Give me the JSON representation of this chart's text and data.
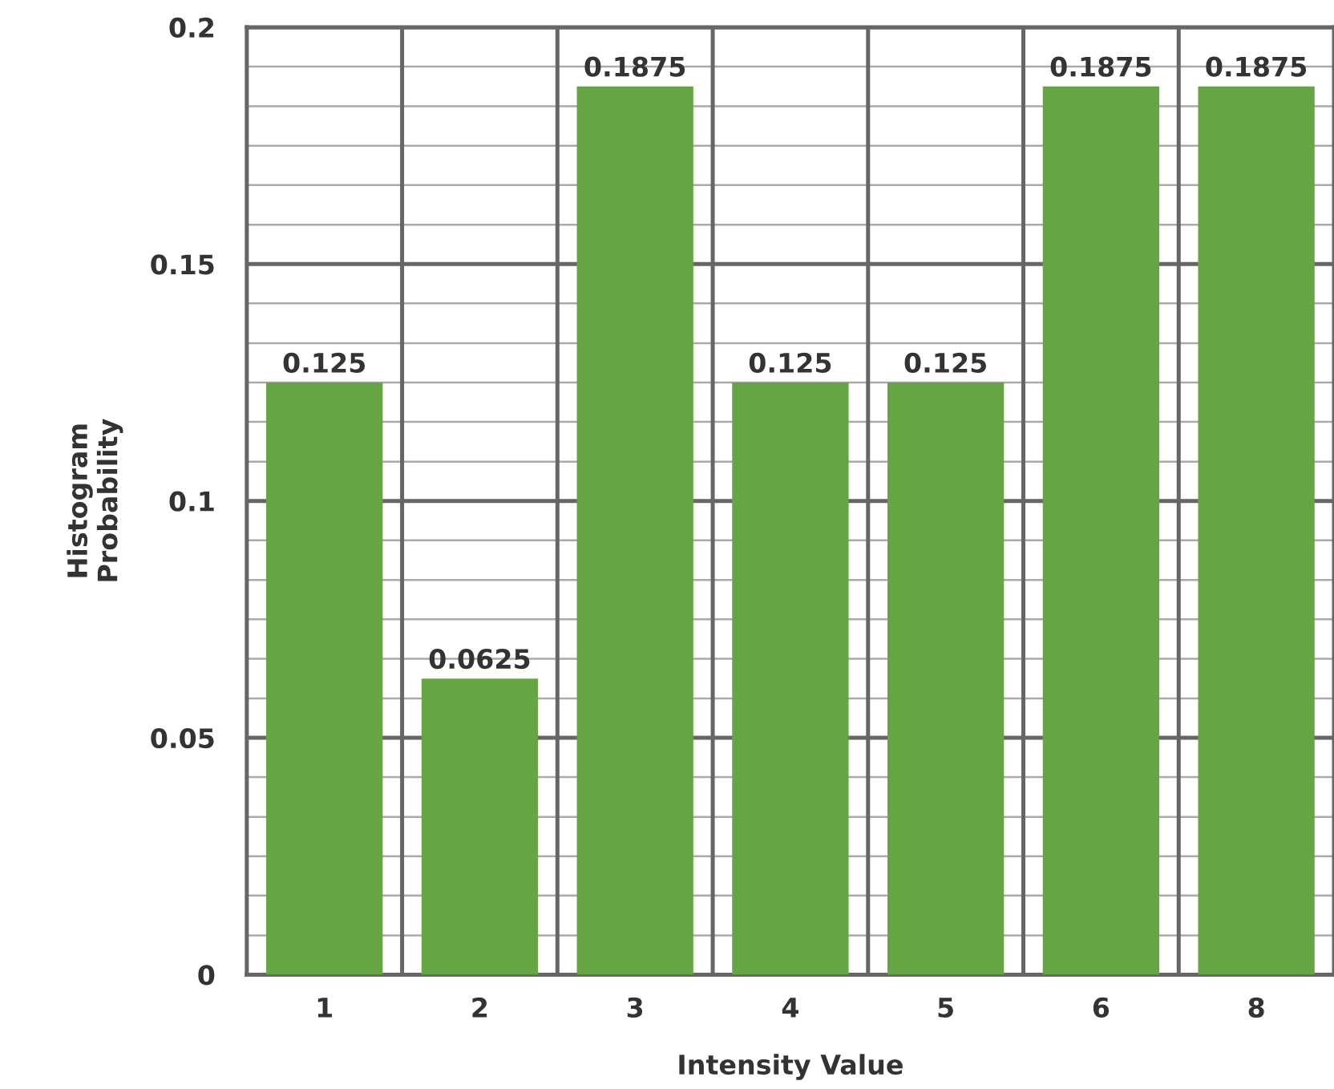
{
  "chart_data": {
    "type": "bar",
    "xlabel": "Intensity Value",
    "ylabel": "Histogram\nProbability",
    "categories": [
      "1",
      "2",
      "3",
      "4",
      "5",
      "6",
      "8"
    ],
    "values": [
      0.125,
      0.0625,
      0.1875,
      0.125,
      0.125,
      0.1875,
      0.1875
    ],
    "color": "#66a544",
    "data_labels": true,
    "grid": true,
    "ylim": [
      0,
      0.2
    ],
    "yticks": [
      0,
      0.05,
      0.1,
      0.15,
      0.2,
      {
        "value": 0.0083,
        "label": null
      },
      {
        "value": 0.0167,
        "label": null
      },
      {
        "value": 0.025,
        "label": null
      },
      {
        "value": 0.0333,
        "label": null
      },
      {
        "value": 0.0417,
        "label": null
      },
      {
        "value": 0.0583,
        "label": null
      },
      {
        "value": 0.0667,
        "label": null
      },
      {
        "value": 0.075,
        "label": null
      },
      {
        "value": 0.0833,
        "label": null
      },
      {
        "value": 0.0917,
        "label": null
      },
      {
        "value": 0.1083,
        "label": null
      },
      {
        "value": 0.1167,
        "label": null
      },
      {
        "value": 0.125,
        "label": null
      },
      {
        "value": 0.1333,
        "label": null
      },
      {
        "value": 0.1417,
        "label": null
      },
      {
        "value": 0.1583,
        "label": null
      },
      {
        "value": 0.1667,
        "label": null
      },
      {
        "value": 0.175,
        "label": null
      },
      {
        "value": 0.1833,
        "label": null
      },
      {
        "value": 0.1917,
        "label": null
      }
    ]
  }
}
